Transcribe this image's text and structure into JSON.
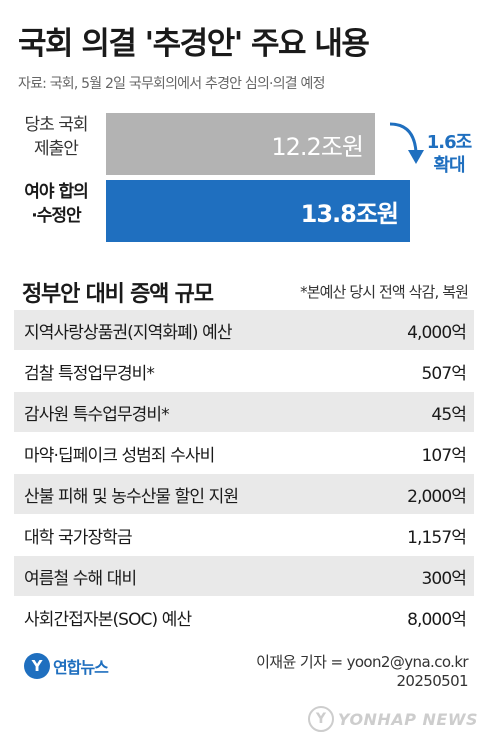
{
  "title": "국회 의결 '추경안' 주요 내용",
  "source": "자료: 국회, 5월 2일 국무회의에서 추경안 심의·의결 예정",
  "chart_data": {
    "type": "bar",
    "orientation": "horizontal",
    "categories": [
      {
        "line1": "당초 국회",
        "line2": "제출안"
      },
      {
        "line1": "여야 합의",
        "line2": "·수정안"
      }
    ],
    "values": [
      12.2,
      13.8
    ],
    "value_labels": [
      "12.2조원",
      "13.8조원"
    ],
    "colors": [
      "#b3b3b3",
      "#1f6fbf"
    ],
    "annotation": {
      "line1": "1.6조",
      "line2": "확대"
    },
    "accent": "#1f6fbf"
  },
  "table": {
    "title": "정부안 대비 증액 규모",
    "note": "*본예산 당시 전액 삭감, 복원",
    "rows": [
      {
        "item": "지역사랑상품권(지역화폐) 예산",
        "amount": "4,000억"
      },
      {
        "item": "검찰 특정업무경비*",
        "amount": "507억"
      },
      {
        "item": "감사원 특수업무경비*",
        "amount": "45억"
      },
      {
        "item": "마약·딥페이크 성범죄 수사비",
        "amount": "107억"
      },
      {
        "item": "산불 피해 및 농수산물 할인 지원",
        "amount": "2,000억"
      },
      {
        "item": "대학 국가장학금",
        "amount": "1,157억"
      },
      {
        "item": "여름철 수해 대비",
        "amount": "300억"
      },
      {
        "item": "사회간접자본(SOC) 예산",
        "amount": "8,000억"
      }
    ]
  },
  "footer": {
    "logo_text": "연합뉴스",
    "credit_line1": "이재윤 기자 = yoon2@yna.co.kr",
    "credit_line2": "20250501",
    "watermark_text": "YONHAP NEWS"
  }
}
